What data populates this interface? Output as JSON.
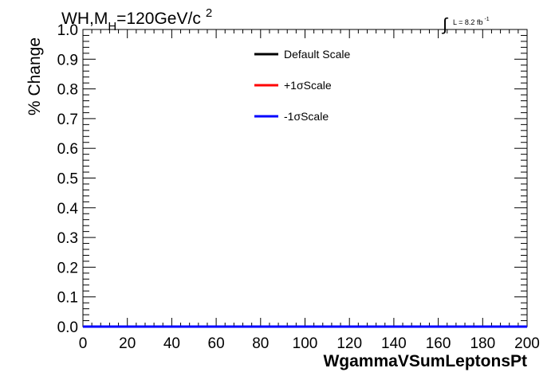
{
  "chart_data": {
    "type": "line",
    "title_main": "WH,M",
    "title_sub": "H",
    "title_rest": "=120GeV/c",
    "title_sup": "2",
    "lumi_label": "L = 8.2 fb",
    "lumi_sup": "-1",
    "xlabel": "WgammaVSumLeptonsPt",
    "ylabel": "% Change",
    "xlim": [
      0,
      200
    ],
    "ylim": [
      0,
      1.0
    ],
    "x_ticks": [
      0,
      20,
      40,
      60,
      80,
      100,
      120,
      140,
      160,
      180,
      200
    ],
    "x_tick_labels": [
      "0",
      "20",
      "40",
      "60",
      "80",
      "100",
      "120",
      "140",
      "160",
      "180",
      "200"
    ],
    "y_ticks": [
      0,
      0.1,
      0.2,
      0.3,
      0.4,
      0.5,
      0.6,
      0.7,
      0.8,
      0.9,
      1.0
    ],
    "y_tick_labels": [
      "0.0",
      "0.1",
      "0.2",
      "0.3",
      "0.4",
      "0.5",
      "0.6",
      "0.7",
      "0.8",
      "0.9",
      "1.0"
    ],
    "legend_position": "top-center",
    "series": [
      {
        "name": "Default Scale",
        "color": "#000000",
        "x": [
          0,
          200
        ],
        "y": [
          0,
          0
        ]
      },
      {
        "name": "+1σScale",
        "color": "#ff0000",
        "x": [
          0,
          200
        ],
        "y": [
          0,
          0
        ]
      },
      {
        "name": "-1σScale",
        "color": "#0000ff",
        "x": [
          0,
          200
        ],
        "y": [
          0,
          0
        ]
      }
    ]
  }
}
